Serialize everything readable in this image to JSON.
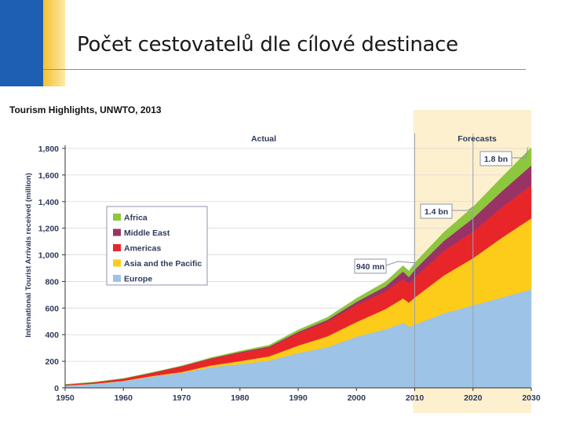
{
  "slide": {
    "title": "Počet cestovatelů dle cílové destinace",
    "source": "Tourism Highlights, UNWTO, 2013"
  },
  "chart_data": {
    "type": "area",
    "ylabel": "International Tourist Arrivals received (million)",
    "xlabel": "",
    "ylim": [
      0,
      1800
    ],
    "xlim": [
      1950,
      2030
    ],
    "x_ticks": [
      1950,
      1960,
      1970,
      1980,
      1990,
      2000,
      2010,
      2020,
      2030
    ],
    "y_ticks": [
      0,
      200,
      400,
      600,
      800,
      1000,
      1200,
      1400,
      1600,
      1800
    ],
    "y_tick_labels": [
      "0",
      "200",
      "400",
      "600",
      "800",
      "1,000",
      "1,200",
      "1,400",
      "1,600",
      "1,800"
    ],
    "stacked": true,
    "x": [
      1950,
      1955,
      1960,
      1965,
      1970,
      1975,
      1980,
      1985,
      1990,
      1995,
      2000,
      2005,
      2008,
      2009,
      2010,
      2015,
      2020,
      2025,
      2030
    ],
    "series": [
      {
        "name": "Europe",
        "color": "#9dc3e6",
        "values": [
          17,
          30,
          50,
          85,
          113,
          155,
          178,
          205,
          262,
          305,
          385,
          440,
          488,
          460,
          475,
          560,
          620,
          680,
          740
        ]
      },
      {
        "name": "Asia and the Pacific",
        "color": "#fdcb1a",
        "values": [
          1,
          2,
          3,
          5,
          7,
          14,
          23,
          32,
          56,
          82,
          110,
          153,
          184,
          181,
          204,
          285,
          355,
          450,
          535
        ]
      },
      {
        "name": "Americas",
        "color": "#e8262a",
        "values": [
          7,
          10,
          16,
          23,
          42,
          50,
          62,
          66,
          93,
          110,
          128,
          133,
          148,
          140,
          150,
          185,
          199,
          230,
          248
        ]
      },
      {
        "name": "Middle East",
        "color": "#993366",
        "values": [
          0.2,
          0.5,
          1,
          2,
          2,
          3,
          7,
          8,
          10,
          14,
          24,
          37,
          55,
          52,
          60,
          75,
          101,
          120,
          149
        ]
      },
      {
        "name": "Africa",
        "color": "#8dc63f",
        "values": [
          0.5,
          1,
          1,
          2,
          2,
          5,
          7,
          10,
          15,
          19,
          26,
          35,
          44,
          46,
          50,
          65,
          85,
          105,
          134
        ]
      }
    ],
    "legend_position": "top-left",
    "regions": [
      {
        "label": "Actual",
        "from": 1950,
        "to": 2010
      },
      {
        "label": "Forecasts",
        "from": 2010,
        "to": 2030
      }
    ],
    "annotations": [
      {
        "text": "940 mn",
        "x": 2010,
        "y": 940
      },
      {
        "text": "1.4 bn",
        "x": 2020,
        "y": 1360
      },
      {
        "text": "1.8 bn",
        "x": 2030,
        "y": 1809
      }
    ],
    "grid": "horizontal"
  },
  "colors": {
    "header_blue": "#1f5fb3",
    "header_yellow": "#f2c230",
    "forecast_band": "#fdf0cf"
  }
}
